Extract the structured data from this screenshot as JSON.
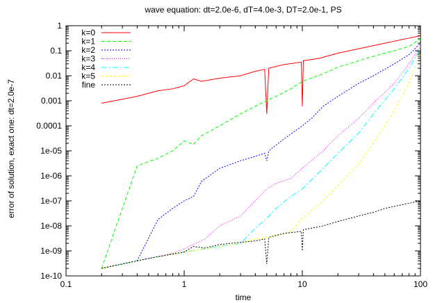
{
  "chart_data": {
    "type": "line",
    "title": "wave equation: dt=2.0e-6, dT=4.0e-3, DT=2.0e-1, PS",
    "xlabel": "time",
    "ylabel": "error of solution, exact one: dt=2.0e-7",
    "xscale": "log",
    "yscale": "log",
    "xlim": [
      0.1,
      100
    ],
    "ylim": [
      1e-10,
      1
    ],
    "grid": false,
    "legend_position": "top-left",
    "x_tick_labels": [
      {
        "v": 0.1,
        "label": "0.1"
      },
      {
        "v": 1,
        "label": "1"
      },
      {
        "v": 10,
        "label": "10"
      },
      {
        "v": 100,
        "label": "100"
      }
    ],
    "y_tick_labels": [
      {
        "v": 1,
        "label": "1"
      },
      {
        "v": 0.1,
        "label": "0.1"
      },
      {
        "v": 0.01,
        "label": "0.01"
      },
      {
        "v": 0.001,
        "label": "0.001"
      },
      {
        "v": 0.0001,
        "label": "0.0001"
      },
      {
        "v": 1e-05,
        "label": "1e-05"
      },
      {
        "v": 1e-06,
        "label": "1e-06"
      },
      {
        "v": 1e-07,
        "label": "1e-07"
      },
      {
        "v": 1e-08,
        "label": "1e-08"
      },
      {
        "v": 1e-09,
        "label": "1e-09"
      },
      {
        "v": 1e-10,
        "label": "1e-10"
      }
    ],
    "series": [
      {
        "name": "k=0",
        "color": "#ff0000",
        "dash": "none",
        "points": [
          [
            0.2,
            0.0008
          ],
          [
            0.4,
            0.0015
          ],
          [
            0.6,
            0.0025
          ],
          [
            0.8,
            0.003
          ],
          [
            1.0,
            0.004
          ],
          [
            1.2,
            0.0075
          ],
          [
            1.4,
            0.006
          ],
          [
            2,
            0.008
          ],
          [
            3,
            0.01
          ],
          [
            4,
            0.015
          ],
          [
            4.8,
            0.018
          ],
          [
            5,
            0.0003
          ],
          [
            5.2,
            0.02
          ],
          [
            7,
            0.028
          ],
          [
            9.8,
            0.035
          ],
          [
            10,
            0.0006
          ],
          [
            10.2,
            0.04
          ],
          [
            14,
            0.05
          ],
          [
            16,
            0.06
          ],
          [
            20,
            0.08
          ],
          [
            25,
            0.1
          ],
          [
            30,
            0.12
          ],
          [
            40,
            0.16
          ],
          [
            50,
            0.2
          ],
          [
            60,
            0.24
          ],
          [
            70,
            0.28
          ],
          [
            80,
            0.32
          ],
          [
            90,
            0.36
          ],
          [
            100,
            0.4
          ]
        ]
      },
      {
        "name": "k=1",
        "color": "#00ff00",
        "dash": "5,3",
        "points": [
          [
            0.2,
            2e-10
          ],
          [
            0.4,
            2.5e-06
          ],
          [
            0.6,
            5e-06
          ],
          [
            0.8,
            1e-05
          ],
          [
            1.0,
            2.5e-05
          ],
          [
            1.2,
            1.8e-05
          ],
          [
            1.4,
            4e-05
          ],
          [
            2,
            0.0001
          ],
          [
            3,
            0.0003
          ],
          [
            4,
            0.0006
          ],
          [
            5,
            0.001
          ],
          [
            6,
            0.0015
          ],
          [
            8,
            0.003
          ],
          [
            10,
            0.006
          ],
          [
            15,
            0.012
          ],
          [
            20,
            0.022
          ],
          [
            30,
            0.04
          ],
          [
            40,
            0.06
          ],
          [
            50,
            0.08
          ],
          [
            60,
            0.1
          ],
          [
            80,
            0.15
          ],
          [
            100,
            0.3
          ]
        ]
      },
      {
        "name": "k=2",
        "color": "#0000ff",
        "dash": "2,2",
        "points": [
          [
            0.2,
            2e-10
          ],
          [
            0.4,
            4e-10
          ],
          [
            0.6,
            1.8e-08
          ],
          [
            0.8,
            5e-08
          ],
          [
            1.0,
            1e-07
          ],
          [
            1.2,
            1.5e-07
          ],
          [
            1.4,
            6e-07
          ],
          [
            2,
            2e-06
          ],
          [
            3,
            4e-06
          ],
          [
            4,
            6e-06
          ],
          [
            4.8,
            8e-06
          ],
          [
            5,
            4e-06
          ],
          [
            5.2,
            1e-05
          ],
          [
            7,
            3e-05
          ],
          [
            10,
            0.0001
          ],
          [
            12,
            0.0002
          ],
          [
            15,
            0.0006
          ],
          [
            20,
            0.0015
          ],
          [
            30,
            0.005
          ],
          [
            40,
            0.01
          ],
          [
            60,
            0.03
          ],
          [
            80,
            0.07
          ],
          [
            100,
            0.2
          ]
        ]
      },
      {
        "name": "k=3",
        "color": "#ff00ff",
        "dash": "1,2",
        "points": [
          [
            0.2,
            2e-10
          ],
          [
            0.5,
            5e-10
          ],
          [
            0.8,
            8e-10
          ],
          [
            1.0,
            1.2e-09
          ],
          [
            1.5,
            3e-09
          ],
          [
            2,
            1e-08
          ],
          [
            3,
            2.5e-08
          ],
          [
            4,
            1e-07
          ],
          [
            5,
            3e-07
          ],
          [
            6,
            5e-07
          ],
          [
            8,
            8e-07
          ],
          [
            10,
            2e-06
          ],
          [
            15,
            1e-05
          ],
          [
            20,
            4e-05
          ],
          [
            30,
            0.0002
          ],
          [
            40,
            0.0008
          ],
          [
            60,
            0.005
          ],
          [
            80,
            0.03
          ],
          [
            100,
            0.15
          ]
        ]
      },
      {
        "name": "k=4",
        "color": "#00ffff",
        "dash": "8,3,2,3",
        "points": [
          [
            0.2,
            2e-10
          ],
          [
            0.5,
            5e-10
          ],
          [
            1.0,
            9e-10
          ],
          [
            2,
            1.5e-09
          ],
          [
            3,
            2e-09
          ],
          [
            4,
            8e-09
          ],
          [
            5,
            2e-08
          ],
          [
            6,
            5e-08
          ],
          [
            8,
            1.5e-07
          ],
          [
            10,
            3e-07
          ],
          [
            15,
            2e-06
          ],
          [
            20,
            8e-06
          ],
          [
            30,
            5e-05
          ],
          [
            40,
            0.0003
          ],
          [
            60,
            0.003
          ],
          [
            80,
            0.02
          ],
          [
            100,
            0.12
          ]
        ]
      },
      {
        "name": "k=5",
        "color": "#ffff00",
        "dash": "3,3",
        "points": [
          [
            0.2,
            2e-10
          ],
          [
            0.5,
            5e-10
          ],
          [
            1.0,
            9e-10
          ],
          [
            2,
            1.5e-09
          ],
          [
            3,
            2e-09
          ],
          [
            4,
            3e-09
          ],
          [
            6,
            4e-09
          ],
          [
            8,
            6e-09
          ],
          [
            10,
            2e-08
          ],
          [
            15,
            1e-07
          ],
          [
            20,
            4e-07
          ],
          [
            30,
            3e-06
          ],
          [
            40,
            2e-05
          ],
          [
            60,
            0.0004
          ],
          [
            80,
            0.005
          ],
          [
            100,
            0.08
          ]
        ]
      },
      {
        "name": "fine",
        "color": "#000000",
        "dash": "2,2",
        "points": [
          [
            0.2,
            2e-10
          ],
          [
            0.5,
            5e-10
          ],
          [
            1.0,
            9e-10
          ],
          [
            1.2,
            1.5e-09
          ],
          [
            1.5,
            1.3e-09
          ],
          [
            2,
            1.8e-09
          ],
          [
            3,
            2.2e-09
          ],
          [
            4,
            2.5e-09
          ],
          [
            4.8,
            3e-09
          ],
          [
            5,
            3e-10
          ],
          [
            5.2,
            3.5e-09
          ],
          [
            7,
            5e-09
          ],
          [
            9.8,
            6e-09
          ],
          [
            10,
            1e-09
          ],
          [
            10.2,
            7e-09
          ],
          [
            15,
            1e-08
          ],
          [
            20,
            1.5e-08
          ],
          [
            30,
            2.5e-08
          ],
          [
            40,
            3.5e-08
          ],
          [
            50,
            5e-08
          ],
          [
            60,
            6e-08
          ],
          [
            80,
            8e-08
          ],
          [
            100,
            1e-07
          ]
        ]
      }
    ]
  }
}
